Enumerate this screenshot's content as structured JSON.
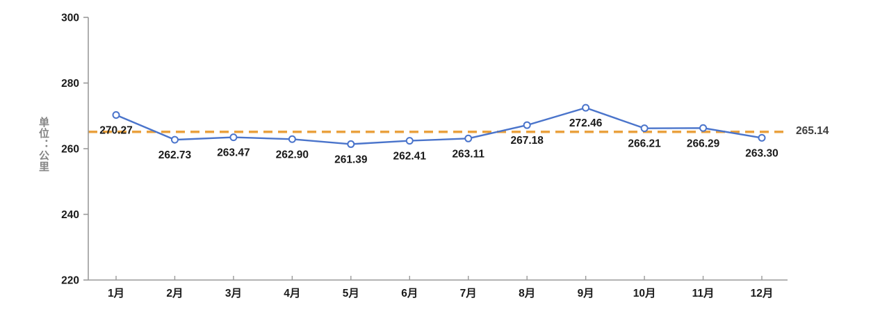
{
  "chart_data": {
    "type": "line",
    "title": "",
    "xlabel": "",
    "ylabel": "单位：公里",
    "categories": [
      "1月",
      "2月",
      "3月",
      "4月",
      "5月",
      "6月",
      "7月",
      "8月",
      "9月",
      "10月",
      "11月",
      "12月"
    ],
    "values": [
      270.27,
      262.73,
      263.47,
      262.9,
      261.39,
      262.41,
      263.11,
      267.18,
      272.46,
      266.21,
      266.29,
      263.3
    ],
    "data_labels": [
      "270.27",
      "262.73",
      "263.47",
      "262.90",
      "261.39",
      "262.41",
      "263.11",
      "267.18",
      "272.46",
      "266.21",
      "266.29",
      "263.30"
    ],
    "average_line": {
      "value": 265.14,
      "label": "265.14"
    },
    "ylim": [
      220,
      300
    ],
    "yticks": [
      220,
      240,
      260,
      280,
      300
    ],
    "grid": false,
    "legend": "none",
    "colors": {
      "line": "#4A74CB",
      "marker_fill": "#FFFFFF",
      "marker_stroke": "#4A74CB",
      "average_line": "#E9A13E",
      "axis": "#999999",
      "tick_label": "#1A1A1A",
      "data_label": "#1A1A1A",
      "average_label": "#3F3F3F",
      "ylabel_color": "#858585"
    }
  }
}
